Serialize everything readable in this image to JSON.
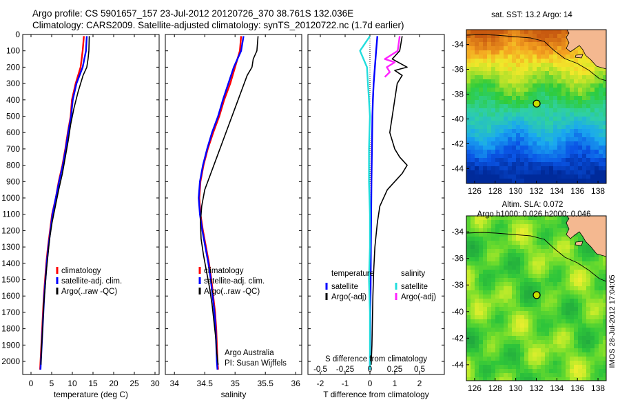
{
  "header": {
    "line1": "Argo profile: CS 5901657_157 23-Jul-2012 20120726_370 38.761S 132.036E",
    "line2": "Climatology: CARS2009. Satellite-adjusted climatology: synTS_20120722.nc (1.7d earlier)"
  },
  "colors": {
    "climatology": "#ff0000",
    "satellite": "#0000ff",
    "argo": "#000000",
    "sal_satellite": "#22dddd",
    "sal_argo": "#ff22ff"
  },
  "chart_data": [
    {
      "type": "line",
      "panel": "temperature",
      "xlabel": "temperature (deg C)",
      "ylabel": "",
      "xlim": [
        -2,
        31
      ],
      "ylim": [
        2080,
        0
      ],
      "xticks": [
        0,
        5,
        10,
        15,
        20,
        25,
        30
      ],
      "yticks": [
        0,
        100,
        200,
        300,
        400,
        500,
        600,
        700,
        800,
        900,
        1000,
        1100,
        1200,
        1300,
        1400,
        1500,
        1600,
        1700,
        1800,
        1900,
        2000
      ],
      "legend": [
        "climatology",
        "satellite-adj. clim.",
        "Argo(..raw -QC)"
      ],
      "series": [
        {
          "name": "climatology",
          "color": "red",
          "x": [
            12.8,
            12.5,
            12.0,
            10.8,
            9.9,
            9.6,
            8.9,
            8.3,
            7.6,
            6.7,
            6.0,
            5.1,
            4.6,
            4.1,
            3.7,
            3.4,
            3.1,
            2.9,
            2.7,
            2.5,
            2.3,
            2.2
          ],
          "y": [
            10,
            100,
            200,
            300,
            400,
            500,
            600,
            700,
            800,
            900,
            1000,
            1100,
            1200,
            1300,
            1400,
            1500,
            1600,
            1700,
            1800,
            1900,
            2000,
            2050
          ]
        },
        {
          "name": "satellite-adj. clim.",
          "color": "blue",
          "x": [
            13.5,
            13.3,
            12.5,
            11.0,
            10.1,
            9.7,
            9.0,
            8.4,
            7.7,
            6.8,
            6.0,
            5.2,
            4.7,
            4.2,
            3.8,
            3.5,
            3.2,
            3.0,
            2.8,
            2.6,
            2.4,
            2.3
          ],
          "y": [
            10,
            100,
            200,
            300,
            400,
            500,
            600,
            700,
            800,
            900,
            1000,
            1100,
            1200,
            1300,
            1400,
            1500,
            1600,
            1700,
            1800,
            1900,
            2000,
            2050
          ]
        },
        {
          "name": "Argo(..raw -QC)",
          "color": "black",
          "x": [
            14.1,
            14.0,
            13.8,
            13.5,
            12.6,
            11.4,
            10.4,
            9.6,
            9.0,
            8.3,
            7.6,
            6.7,
            5.9,
            5.1,
            4.5,
            4.1,
            3.7,
            3.4,
            3.1,
            2.9,
            2.7,
            2.5,
            2.4
          ],
          "y": [
            10,
            100,
            150,
            200,
            250,
            350,
            450,
            550,
            650,
            750,
            850,
            950,
            1050,
            1150,
            1250,
            1350,
            1450,
            1550,
            1650,
            1750,
            1850,
            1950,
            2020
          ]
        }
      ]
    },
    {
      "type": "line",
      "panel": "salinity",
      "xlabel": "salinity",
      "ylabel": "",
      "xlim": [
        33.85,
        36.1
      ],
      "ylim": [
        2080,
        0
      ],
      "xticks": [
        34,
        34.5,
        35,
        35.5,
        36
      ],
      "legend": [
        "climatology",
        "satellite-adj. clim.",
        "Argo(..raw -QC)"
      ],
      "annotation": [
        "Argo Australia",
        "PI: Susan Wijffels"
      ],
      "series": [
        {
          "name": "climatology",
          "color": "red",
          "x": [
            35.1,
            35.08,
            35.0,
            34.92,
            34.82,
            34.74,
            34.64,
            34.55,
            34.48,
            34.43,
            34.41,
            34.43,
            34.47,
            34.52,
            34.57,
            34.61,
            34.64,
            34.67,
            34.69,
            34.7,
            34.71,
            34.72
          ],
          "y": [
            10,
            100,
            200,
            300,
            400,
            500,
            600,
            700,
            800,
            900,
            1000,
            1100,
            1200,
            1300,
            1400,
            1500,
            1600,
            1700,
            1800,
            1900,
            2000,
            2050
          ]
        },
        {
          "name": "satellite-adj. clim.",
          "color": "blue",
          "x": [
            35.14,
            35.1,
            34.98,
            34.89,
            34.8,
            34.72,
            34.62,
            34.54,
            34.47,
            34.42,
            34.4,
            34.42,
            34.46,
            34.51,
            34.56,
            34.6,
            34.63,
            34.66,
            34.68,
            34.69,
            34.7,
            34.71
          ],
          "y": [
            10,
            100,
            200,
            300,
            400,
            500,
            600,
            700,
            800,
            900,
            1000,
            1100,
            1200,
            1300,
            1400,
            1500,
            1600,
            1700,
            1800,
            1900,
            2000,
            2050
          ]
        },
        {
          "name": "Argo(..raw -QC)",
          "color": "black",
          "x": [
            35.38,
            35.36,
            35.3,
            35.28,
            35.2,
            35.1,
            35.0,
            34.9,
            34.8,
            34.7,
            34.6,
            34.5,
            34.45,
            34.43,
            34.44,
            34.48,
            34.53,
            34.58,
            34.62,
            34.65,
            34.68,
            34.7,
            34.72
          ],
          "y": [
            10,
            100,
            150,
            200,
            250,
            350,
            450,
            550,
            650,
            750,
            850,
            950,
            1050,
            1150,
            1250,
            1350,
            1450,
            1550,
            1650,
            1750,
            1850,
            1950,
            2020
          ]
        }
      ]
    },
    {
      "type": "line",
      "panel": "difference",
      "xlabel": "T difference from climatology",
      "xlabel2": "S difference from climatology",
      "xlim": [
        -2.5,
        3.0
      ],
      "xlim2": [
        -0.625,
        0.75
      ],
      "ylim": [
        2080,
        0
      ],
      "xticks": [
        -2,
        -1,
        0,
        1,
        2
      ],
      "xticks2": [
        "-0.5",
        "-0.25",
        "0",
        "0.25",
        "0.5"
      ],
      "legend_titles": [
        "temperature",
        "salinity"
      ],
      "legend": [
        "satellite",
        "Argo(-adj)",
        "satellite",
        "Argo(-adj)"
      ],
      "series": [
        {
          "name": "satellite",
          "group": "temperature",
          "color": "blue",
          "x": [
            0.3,
            0.25,
            0.2,
            0.15,
            0.12,
            0.1,
            0.08,
            0.06,
            0.05,
            0.04,
            0.03,
            0.02,
            0.01,
            0.0,
            0.0
          ],
          "y": [
            10,
            100,
            200,
            300,
            400,
            500,
            700,
            900,
            1100,
            1300,
            1500,
            1700,
            1900,
            2000,
            2050
          ]
        },
        {
          "name": "Argo(-adj)",
          "group": "temperature",
          "color": "black",
          "x": [
            1.3,
            1.2,
            0.9,
            1.5,
            1.0,
            1.3,
            1.1,
            1.0,
            0.9,
            0.8,
            1.0,
            1.2,
            1.5,
            1.3,
            0.7,
            0.4,
            0.3,
            0.2,
            0.15,
            0.12,
            0.1,
            0.08,
            0.05
          ],
          "y": [
            10,
            100,
            150,
            200,
            220,
            250,
            300,
            400,
            500,
            600,
            700,
            750,
            800,
            850,
            950,
            1050,
            1150,
            1300,
            1450,
            1600,
            1750,
            1900,
            2020
          ]
        },
        {
          "name": "satellite",
          "group": "salinity",
          "color": "cyan",
          "x": [
            0.0,
            -0.1,
            -0.03,
            -0.02,
            -0.01,
            0.0,
            -0.01,
            -0.01,
            0.0,
            0.0,
            -0.01,
            0.0,
            0.0,
            0.0,
            0.0
          ],
          "y": [
            10,
            100,
            200,
            300,
            400,
            500,
            700,
            900,
            1100,
            1300,
            1500,
            1700,
            1900,
            2000,
            2050
          ]
        },
        {
          "name": "Argo(-adj)",
          "group": "salinity",
          "color": "magenta",
          "x": [
            0.3,
            0.28,
            0.15,
            0.25,
            0.17,
            0.2,
            0.15
          ],
          "y": [
            10,
            100,
            150,
            170,
            200,
            230,
            260
          ]
        }
      ]
    },
    {
      "type": "heatmap",
      "panel": "sst-map",
      "title": "sat. SST: 13.2  Argo: 14",
      "xticks": [
        126,
        128,
        130,
        132,
        134,
        136,
        138
      ],
      "yticks": [
        -34,
        -36,
        -38,
        -40,
        -42,
        -44
      ],
      "xlim": [
        125.2,
        138.8
      ],
      "ylim": [
        -45.2,
        -32.8
      ],
      "marker": {
        "lon": 132.036,
        "lat": -38.761
      }
    },
    {
      "type": "heatmap",
      "panel": "sla-map",
      "title": "Altim. SLA: 0.072",
      "subtitle": "Argo h1000: 0.026 h2000: 0.046",
      "xticks": [
        126,
        128,
        130,
        132,
        134,
        136,
        138
      ],
      "yticks": [
        -34,
        -36,
        -38,
        -40,
        -42,
        -44
      ],
      "xlim": [
        125.2,
        138.8
      ],
      "ylim": [
        -45.2,
        -32.8
      ],
      "marker": {
        "lon": 132.036,
        "lat": -38.761
      }
    }
  ],
  "sidebar_stamp": "IMOS 28-Jul-2012 17:04:05"
}
